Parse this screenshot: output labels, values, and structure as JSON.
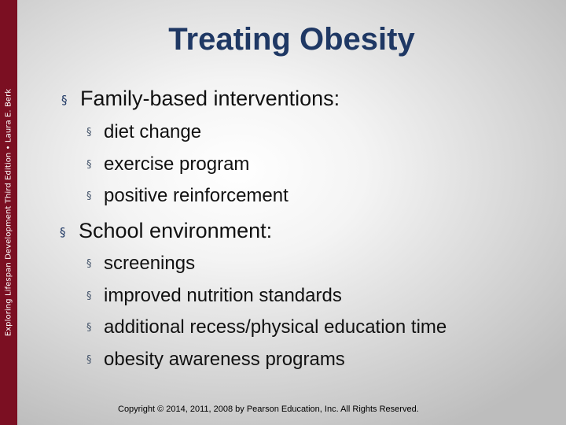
{
  "slide": {
    "side_caption": "Exploring Lifespan Development Third Edition • Laura E. Berk",
    "title": "Treating Obesity",
    "bullet_marker": "§",
    "sections": [
      {
        "heading": "Family-based interventions:",
        "items": [
          "diet change",
          "exercise program",
          "positive reinforcement"
        ]
      },
      {
        "heading": "School environment:",
        "items": [
          "screenings",
          "improved nutrition standards",
          "additional recess/physical education time",
          "obesity awareness programs"
        ]
      }
    ],
    "copyright": "Copyright © 2014, 2011, 2008 by Pearson Education, Inc. All Rights Reserved."
  },
  "colors": {
    "side_bar": "#7b0f22",
    "title": "#1f3864"
  }
}
